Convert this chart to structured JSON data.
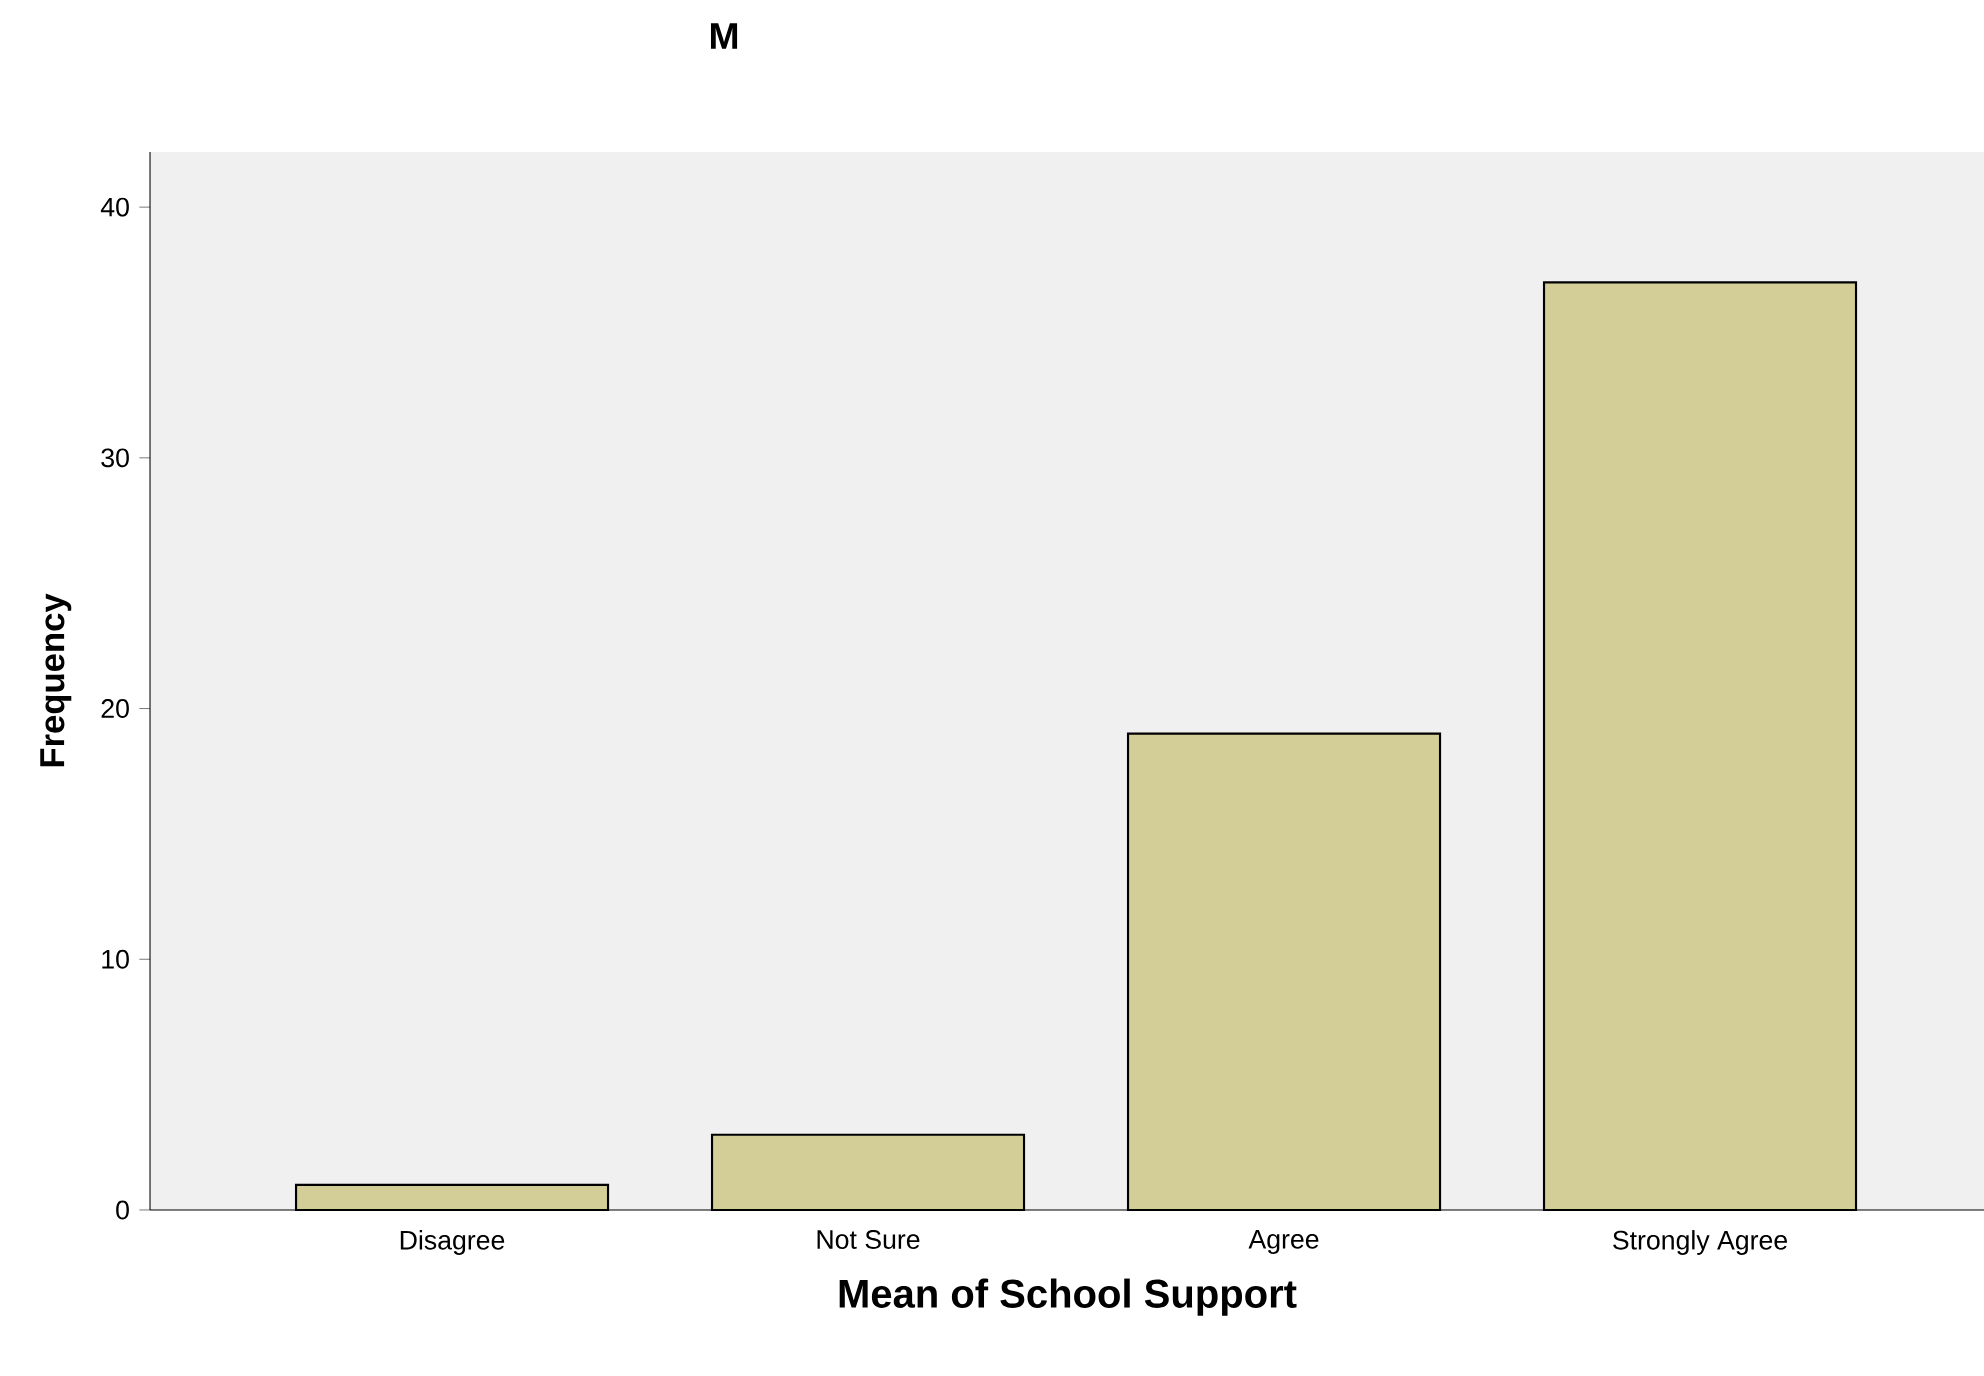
{
  "chart_data": {
    "type": "bar",
    "title": "M",
    "xlabel": "Mean of School Support",
    "ylabel": "Frequency",
    "categories": [
      "Disagree",
      "Not Sure",
      "Agree",
      "Strongly Agree"
    ],
    "values": [
      1,
      3,
      19,
      37
    ],
    "color": "#d3ce97",
    "ylim": [
      0,
      42.2
    ],
    "yticks": [
      0,
      10,
      20,
      30,
      40
    ]
  }
}
